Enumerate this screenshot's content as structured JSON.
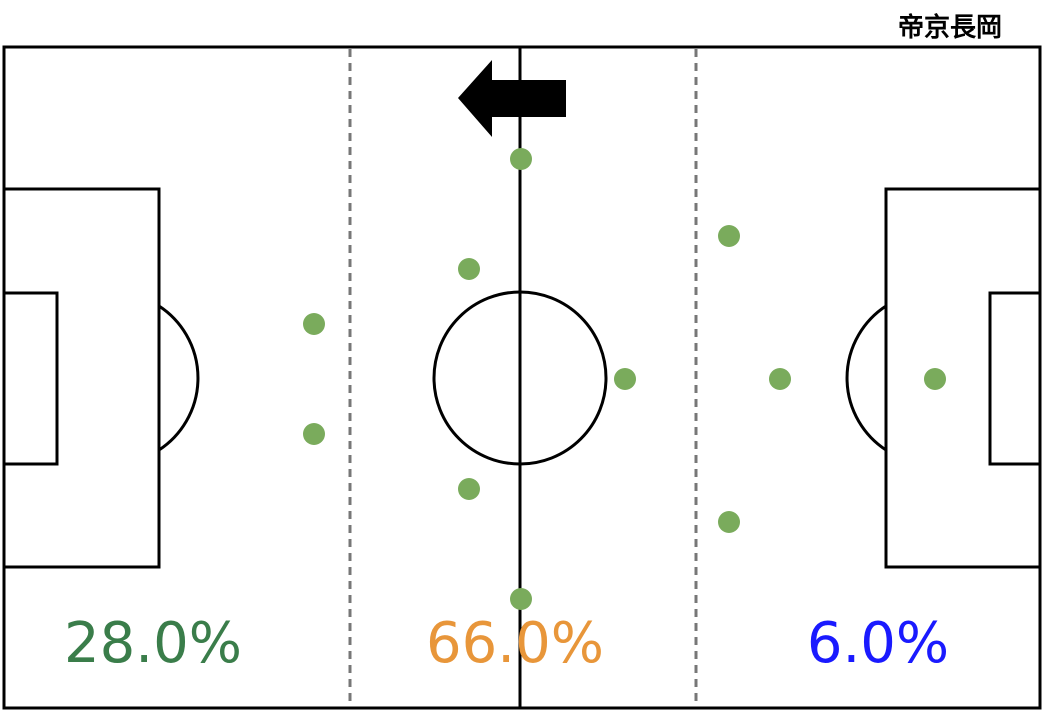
{
  "team": "帝京長岡",
  "zones": [
    {
      "share": "28.0%",
      "color": "#3a7d4a"
    },
    {
      "share": "66.0%",
      "color": "#e8963a"
    },
    {
      "share": "6.0%",
      "color": "#1a1aff"
    }
  ]
}
